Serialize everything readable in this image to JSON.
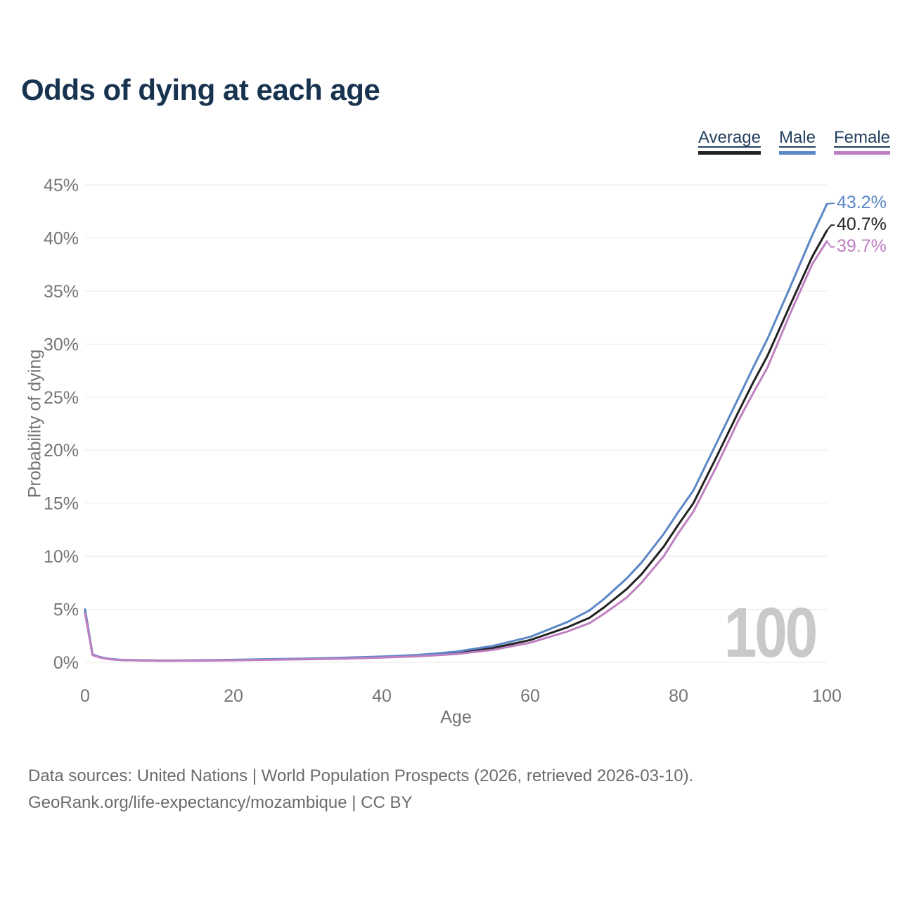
{
  "title": "Odds of dying at each age",
  "footer": {
    "line1": "Data sources: United Nations | World Population Prospects (2026, retrieved 2026-03-10).",
    "line2": "GeoRank.org/life-expectancy/mozambique | CC BY"
  },
  "chart_data": {
    "type": "line",
    "title": "Odds of dying at each age",
    "xlabel": "Age",
    "ylabel": "Probability of dying",
    "xlim": [
      0,
      100
    ],
    "ylim": [
      0,
      45
    ],
    "x_ticks": [
      0,
      20,
      40,
      60,
      80,
      100
    ],
    "y_ticks": [
      0,
      5,
      10,
      15,
      20,
      25,
      30,
      35,
      40,
      45
    ],
    "y_tick_suffix": "%",
    "grid": "horizontal",
    "grid_color": "#e8e8e8",
    "legend_position": "top-right",
    "watermark": "100",
    "x": [
      0,
      1,
      2,
      3,
      4,
      5,
      10,
      15,
      20,
      25,
      30,
      35,
      40,
      45,
      50,
      55,
      60,
      65,
      68,
      70,
      73,
      75,
      78,
      80,
      82,
      85,
      88,
      90,
      92,
      95,
      98,
      100
    ],
    "series": [
      {
        "name": "Average",
        "color": "#222222",
        "end_label": "40.7%",
        "values": [
          4.8,
          0.72,
          0.48,
          0.34,
          0.26,
          0.22,
          0.16,
          0.17,
          0.22,
          0.27,
          0.33,
          0.4,
          0.5,
          0.63,
          0.88,
          1.35,
          2.1,
          3.3,
          4.2,
          5.2,
          6.9,
          8.3,
          10.9,
          13.0,
          15.0,
          19.2,
          23.5,
          26.3,
          28.9,
          33.6,
          38.2,
          40.7
        ]
      },
      {
        "name": "Male",
        "color": "#5b87c7",
        "end_label": "43.2%",
        "values": [
          5.0,
          0.75,
          0.5,
          0.36,
          0.28,
          0.23,
          0.17,
          0.19,
          0.24,
          0.3,
          0.36,
          0.44,
          0.55,
          0.7,
          1.0,
          1.55,
          2.4,
          3.8,
          4.9,
          6.0,
          7.9,
          9.4,
          12.1,
          14.2,
          16.2,
          20.5,
          24.8,
          27.7,
          30.5,
          35.3,
          40.2,
          43.2
        ]
      },
      {
        "name": "Female",
        "color": "#bf80c2",
        "end_label": "39.7%",
        "values": [
          4.6,
          0.68,
          0.45,
          0.32,
          0.25,
          0.21,
          0.15,
          0.16,
          0.19,
          0.24,
          0.29,
          0.35,
          0.45,
          0.57,
          0.78,
          1.18,
          1.85,
          2.9,
          3.7,
          4.6,
          6.1,
          7.5,
          10.0,
          12.2,
          14.2,
          18.3,
          22.7,
          25.3,
          27.8,
          32.8,
          37.5,
          39.7
        ]
      }
    ]
  }
}
